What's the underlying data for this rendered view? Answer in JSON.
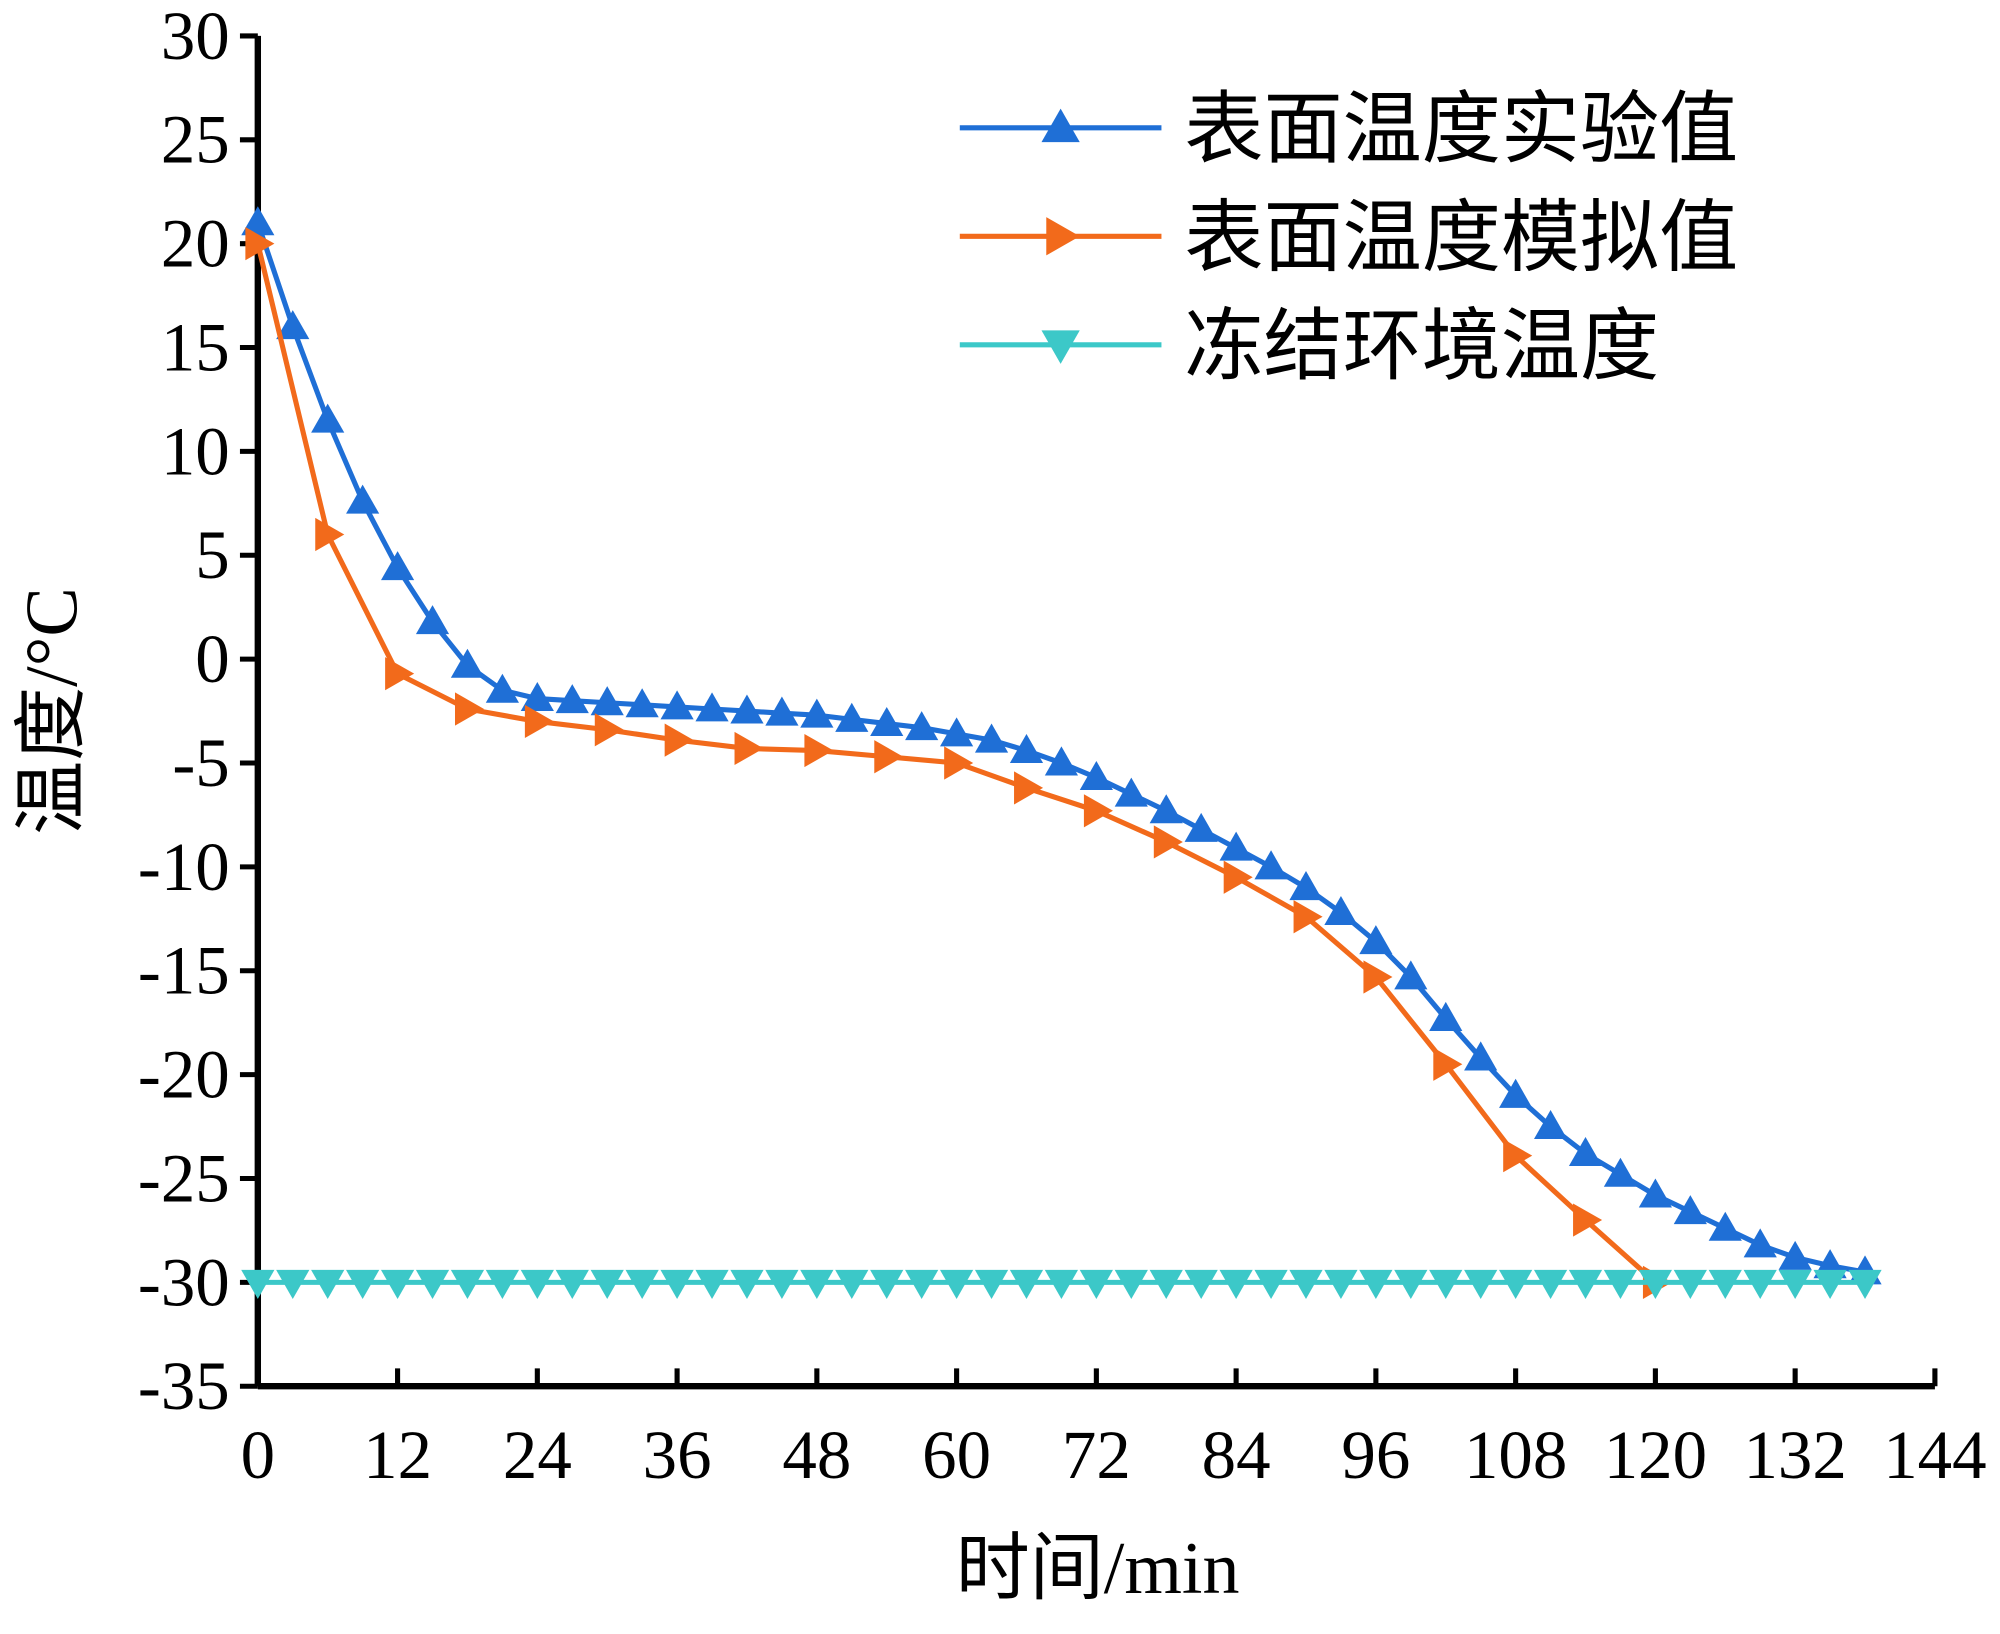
{
  "chart_data": {
    "type": "line",
    "x_label": "时间/min",
    "y_label": "温度/°C",
    "xlim": [
      0,
      144
    ],
    "xticks": [
      0,
      12,
      24,
      36,
      48,
      60,
      72,
      84,
      96,
      108,
      120,
      132,
      144
    ],
    "ylim": [
      -35,
      30
    ],
    "yticks": [
      -35,
      -30,
      -25,
      -20,
      -15,
      -10,
      -5,
      0,
      5,
      10,
      15,
      20,
      25,
      30
    ],
    "legend": "upper right",
    "series": [
      {
        "name": "表面温度实验值",
        "color": "#1f6fd6",
        "marker": "triangle-up",
        "x": [
          0,
          3,
          6,
          9,
          12,
          15,
          18,
          21,
          24,
          27,
          30,
          33,
          36,
          39,
          42,
          45,
          48,
          51,
          54,
          57,
          60,
          63,
          66,
          69,
          72,
          75,
          78,
          81,
          84,
          87,
          90,
          93,
          96,
          99,
          102,
          105,
          108,
          111,
          114,
          117,
          120,
          123,
          126,
          129,
          132,
          135,
          138
        ],
        "values": [
          21,
          16,
          11.5,
          7.6,
          4.4,
          1.8,
          -0.3,
          -1.5,
          -1.9,
          -2.0,
          -2.1,
          -2.2,
          -2.3,
          -2.4,
          -2.5,
          -2.6,
          -2.7,
          -2.9,
          -3.1,
          -3.3,
          -3.6,
          -3.9,
          -4.4,
          -5.0,
          -5.7,
          -6.5,
          -7.3,
          -8.2,
          -9.1,
          -10.0,
          -11.0,
          -12.2,
          -13.6,
          -15.3,
          -17.3,
          -19.2,
          -21.0,
          -22.5,
          -23.8,
          -24.8,
          -25.8,
          -26.6,
          -27.4,
          -28.2,
          -28.8,
          -29.2,
          -29.5
        ]
      },
      {
        "name": "表面温度模拟值",
        "color": "#f26a1b",
        "marker": "triangle-right",
        "x": [
          0,
          6,
          12,
          18,
          24,
          30,
          36,
          42,
          48,
          54,
          60,
          66,
          72,
          78,
          84,
          90,
          96,
          102,
          108,
          114,
          120
        ],
        "values": [
          20,
          6,
          -0.7,
          -2.4,
          -3.0,
          -3.4,
          -3.9,
          -4.3,
          -4.4,
          -4.7,
          -5.0,
          -6.2,
          -7.3,
          -8.8,
          -10.5,
          -12.4,
          -15.3,
          -19.5,
          -23.9,
          -27.0,
          -30
        ]
      },
      {
        "name": "冻结环境温度",
        "color": "#3cc8c8",
        "marker": "triangle-down",
        "x": [
          0,
          3,
          6,
          9,
          12,
          15,
          18,
          21,
          24,
          27,
          30,
          33,
          36,
          39,
          42,
          45,
          48,
          51,
          54,
          57,
          60,
          63,
          66,
          69,
          72,
          75,
          78,
          81,
          84,
          87,
          90,
          93,
          96,
          99,
          102,
          105,
          108,
          111,
          114,
          117,
          120,
          123,
          126,
          129,
          132,
          135,
          138
        ],
        "values": [
          -30,
          -30,
          -30,
          -30,
          -30,
          -30,
          -30,
          -30,
          -30,
          -30,
          -30,
          -30,
          -30,
          -30,
          -30,
          -30,
          -30,
          -30,
          -30,
          -30,
          -30,
          -30,
          -30,
          -30,
          -30,
          -30,
          -30,
          -30,
          -30,
          -30,
          -30,
          -30,
          -30,
          -30,
          -30,
          -30,
          -30,
          -30,
          -30,
          -30,
          -30,
          -30,
          -30,
          -30,
          -30,
          -30,
          -30
        ]
      }
    ]
  }
}
